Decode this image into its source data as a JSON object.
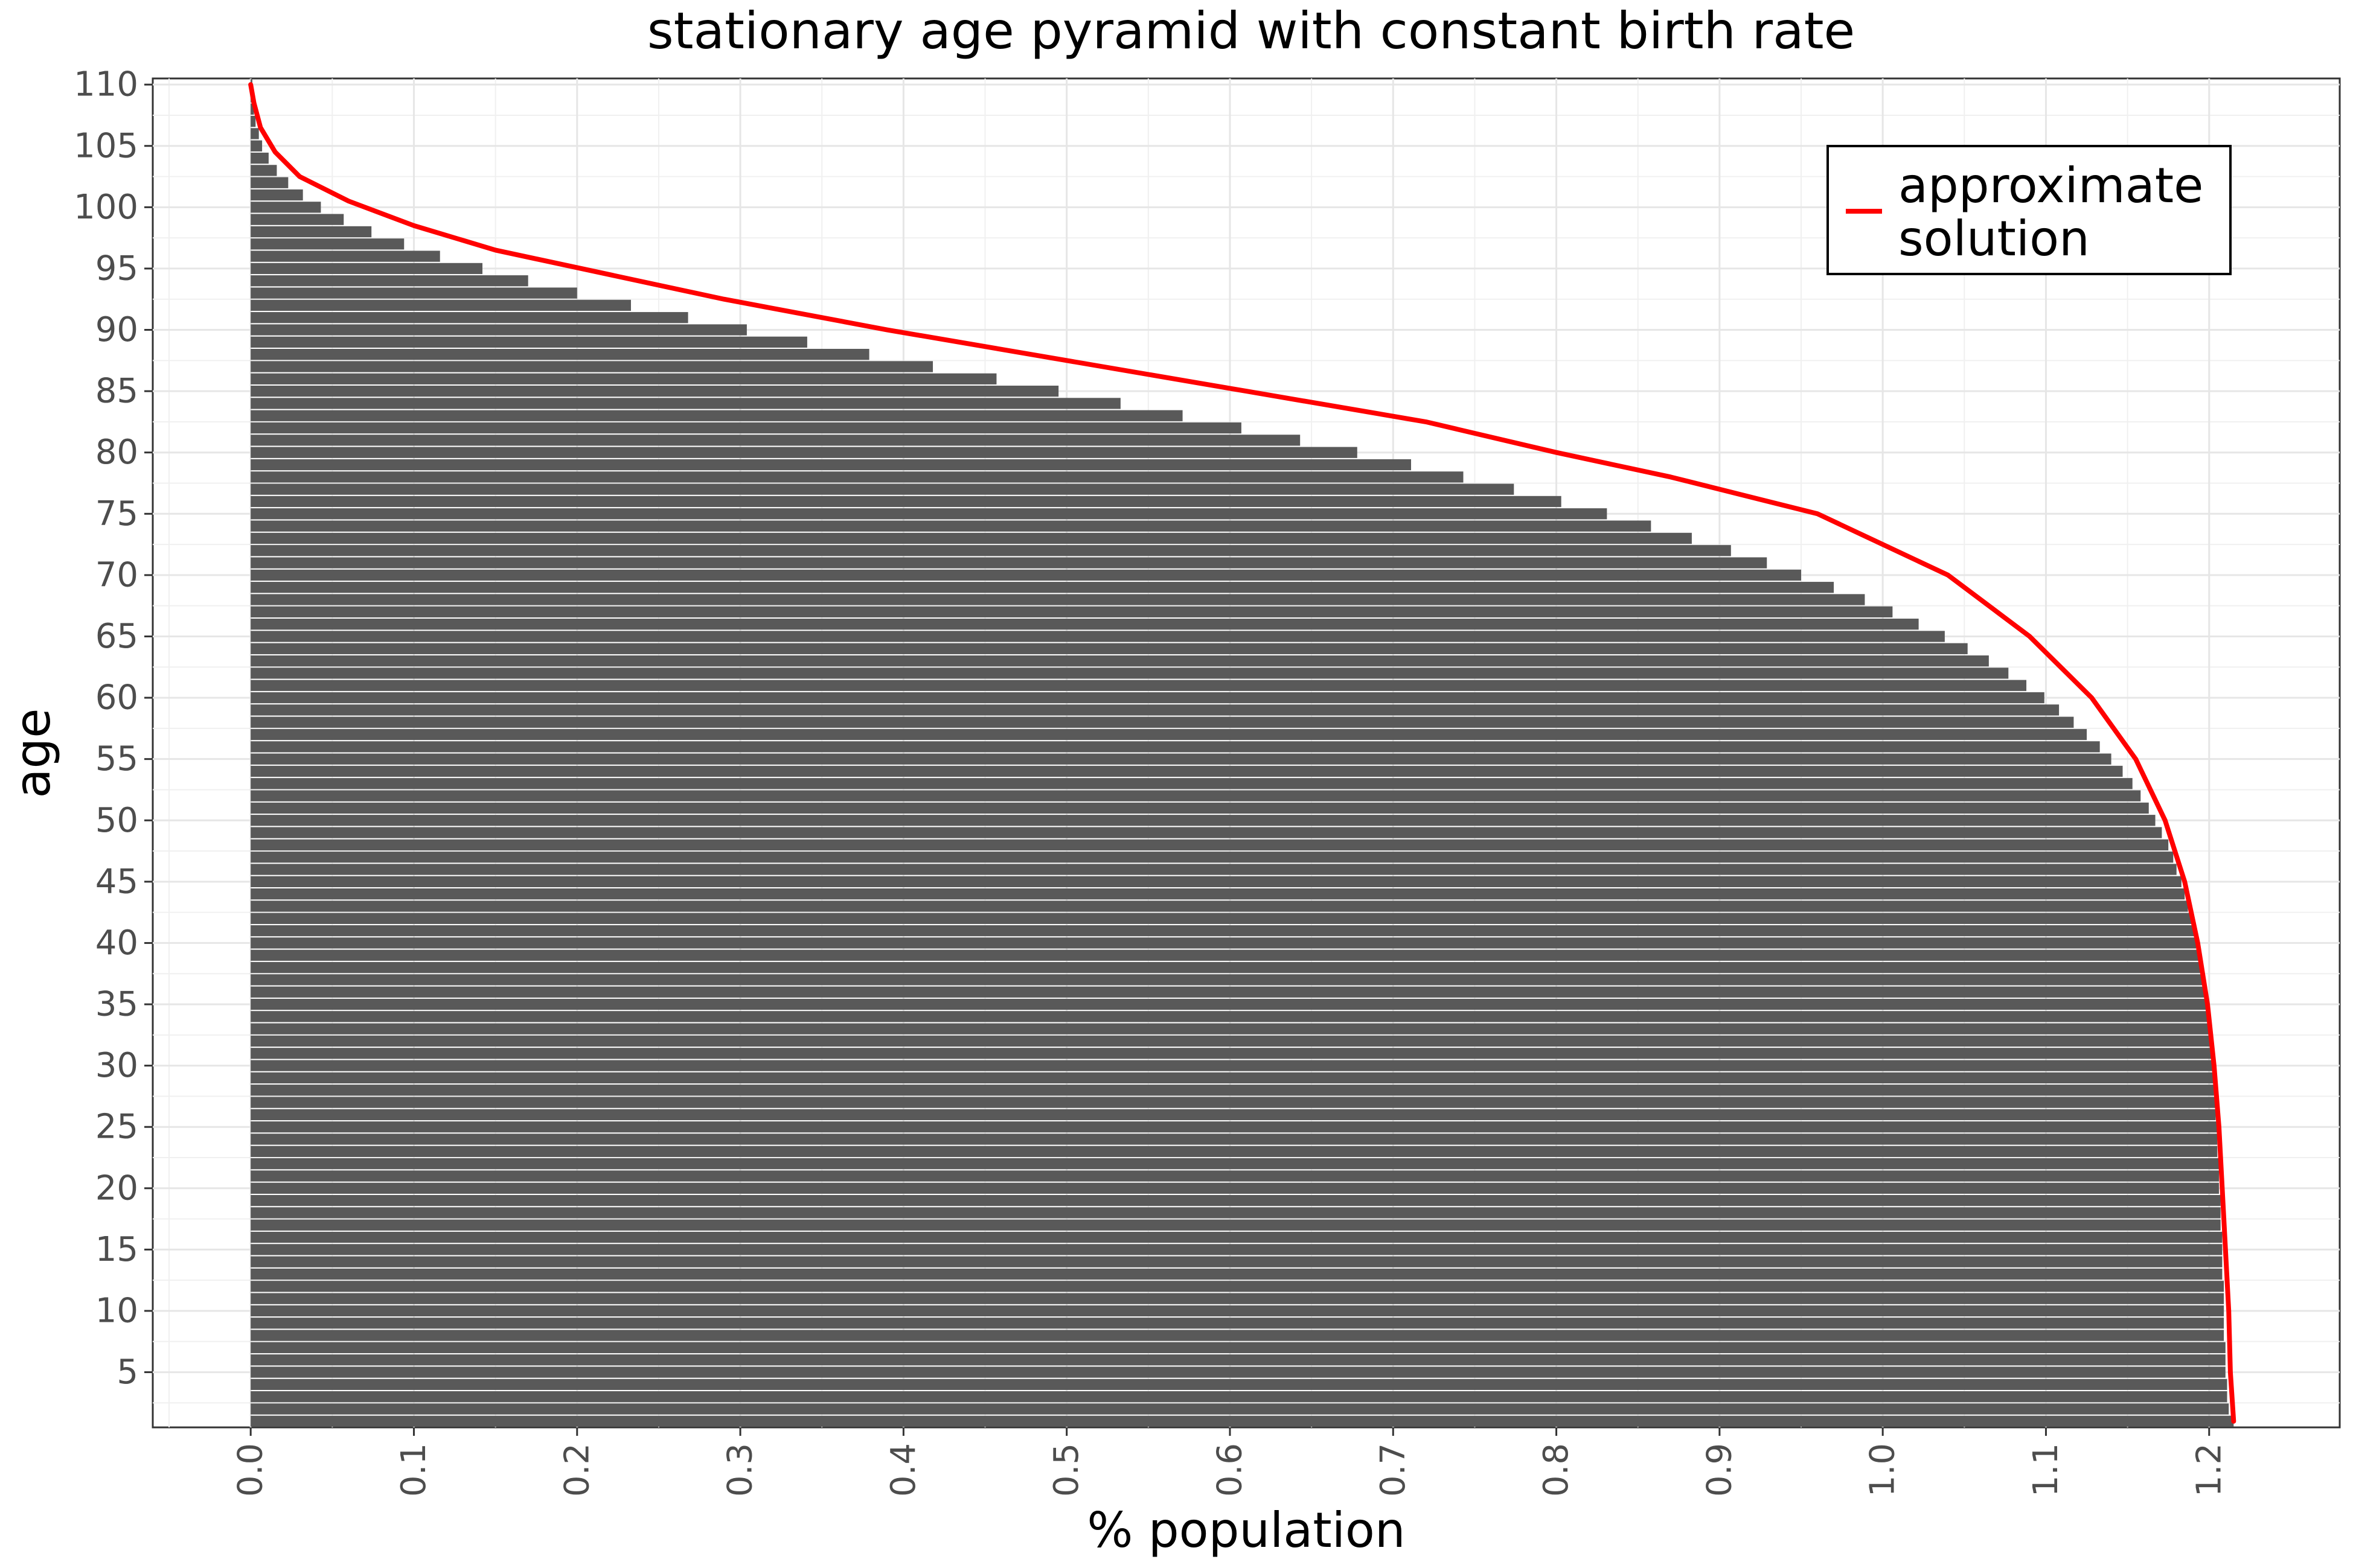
{
  "chart_data": {
    "type": "bar",
    "orientation": "horizontal",
    "title": "stationary age pyramid with constant birth rate",
    "xlabel": "% population",
    "ylabel": "age",
    "xlim": [
      -0.06,
      1.28
    ],
    "ylim": [
      0.5,
      110.5
    ],
    "x_ticks": [
      "0.0",
      "0.1",
      "0.2",
      "0.3",
      "0.4",
      "0.5",
      "0.6",
      "0.7",
      "0.8",
      "0.9",
      "1.0",
      "1.1",
      "1.2"
    ],
    "y_ticks": [
      "5",
      "10",
      "15",
      "20",
      "25",
      "30",
      "35",
      "40",
      "45",
      "50",
      "55",
      "60",
      "65",
      "70",
      "75",
      "80",
      "85",
      "90",
      "95",
      "100",
      "105",
      "110"
    ],
    "grid": true,
    "legend": {
      "position": "top-right",
      "entries": [
        {
          "label_lines": [
            "approximate",
            "solution"
          ],
          "color": "#ff0000"
        }
      ]
    },
    "bar_color": "#595959",
    "line_color": "#ff0000",
    "series": [
      {
        "name": "population share by age",
        "kind": "bars",
        "y": [
          1,
          2,
          3,
          4,
          5,
          6,
          7,
          8,
          9,
          10,
          11,
          12,
          13,
          14,
          15,
          16,
          17,
          18,
          19,
          20,
          21,
          22,
          23,
          24,
          25,
          26,
          27,
          28,
          29,
          30,
          31,
          32,
          33,
          34,
          35,
          36,
          37,
          38,
          39,
          40,
          41,
          42,
          43,
          44,
          45,
          46,
          47,
          48,
          49,
          50,
          51,
          52,
          53,
          54,
          55,
          56,
          57,
          58,
          59,
          60,
          61,
          62,
          63,
          64,
          65,
          66,
          67,
          68,
          69,
          70,
          71,
          72,
          73,
          74,
          75,
          76,
          77,
          78,
          79,
          80,
          81,
          82,
          83,
          84,
          85,
          86,
          87,
          88,
          89,
          90,
          91,
          92,
          93,
          94,
          95,
          96,
          97,
          98,
          99,
          100,
          101,
          102,
          103,
          104,
          105,
          106,
          107,
          108,
          109,
          110
        ],
        "values": [
          1.215,
          1.212,
          1.211,
          1.211,
          1.21,
          1.21,
          1.21,
          1.209,
          1.209,
          1.209,
          1.209,
          1.209,
          1.208,
          1.208,
          1.208,
          1.208,
          1.207,
          1.207,
          1.207,
          1.206,
          1.206,
          1.206,
          1.205,
          1.205,
          1.205,
          1.204,
          1.204,
          1.203,
          1.203,
          1.202,
          1.202,
          1.201,
          1.2,
          1.199,
          1.198,
          1.197,
          1.196,
          1.195,
          1.194,
          1.192,
          1.191,
          1.189,
          1.187,
          1.185,
          1.183,
          1.18,
          1.178,
          1.175,
          1.171,
          1.167,
          1.163,
          1.158,
          1.153,
          1.147,
          1.14,
          1.133,
          1.125,
          1.117,
          1.108,
          1.099,
          1.088,
          1.077,
          1.065,
          1.052,
          1.038,
          1.022,
          1.006,
          0.989,
          0.97,
          0.95,
          0.929,
          0.907,
          0.883,
          0.858,
          0.831,
          0.803,
          0.774,
          0.743,
          0.711,
          0.678,
          0.643,
          0.607,
          0.571,
          0.533,
          0.495,
          0.457,
          0.418,
          0.379,
          0.341,
          0.304,
          0.268,
          0.233,
          0.2,
          0.17,
          0.142,
          0.116,
          0.094,
          0.074,
          0.057,
          0.043,
          0.032,
          0.023,
          0.016,
          0.011,
          0.007,
          0.005,
          0.003,
          0.002,
          0.001,
          0.001
        ]
      },
      {
        "name": "approximate solution",
        "kind": "line",
        "points": [
          [
            1.215,
            1
          ],
          [
            1.213,
            5
          ],
          [
            1.212,
            10
          ],
          [
            1.21,
            15
          ],
          [
            1.208,
            20
          ],
          [
            1.206,
            25
          ],
          [
            1.203,
            30
          ],
          [
            1.199,
            35
          ],
          [
            1.193,
            40
          ],
          [
            1.185,
            45
          ],
          [
            1.173,
            50
          ],
          [
            1.155,
            55
          ],
          [
            1.128,
            60
          ],
          [
            1.09,
            65
          ],
          [
            1.04,
            70
          ],
          [
            0.96,
            75
          ],
          [
            0.87,
            78
          ],
          [
            0.8,
            80
          ],
          [
            0.72,
            82.5
          ],
          [
            0.61,
            85
          ],
          [
            0.5,
            87.5
          ],
          [
            0.39,
            90
          ],
          [
            0.29,
            92.5
          ],
          [
            0.22,
            94.5
          ],
          [
            0.15,
            96.5
          ],
          [
            0.1,
            98.5
          ],
          [
            0.06,
            100.5
          ],
          [
            0.03,
            102.5
          ],
          [
            0.015,
            104.5
          ],
          [
            0.006,
            106.5
          ],
          [
            0.002,
            108.5
          ],
          [
            0.0,
            110
          ]
        ]
      }
    ]
  }
}
